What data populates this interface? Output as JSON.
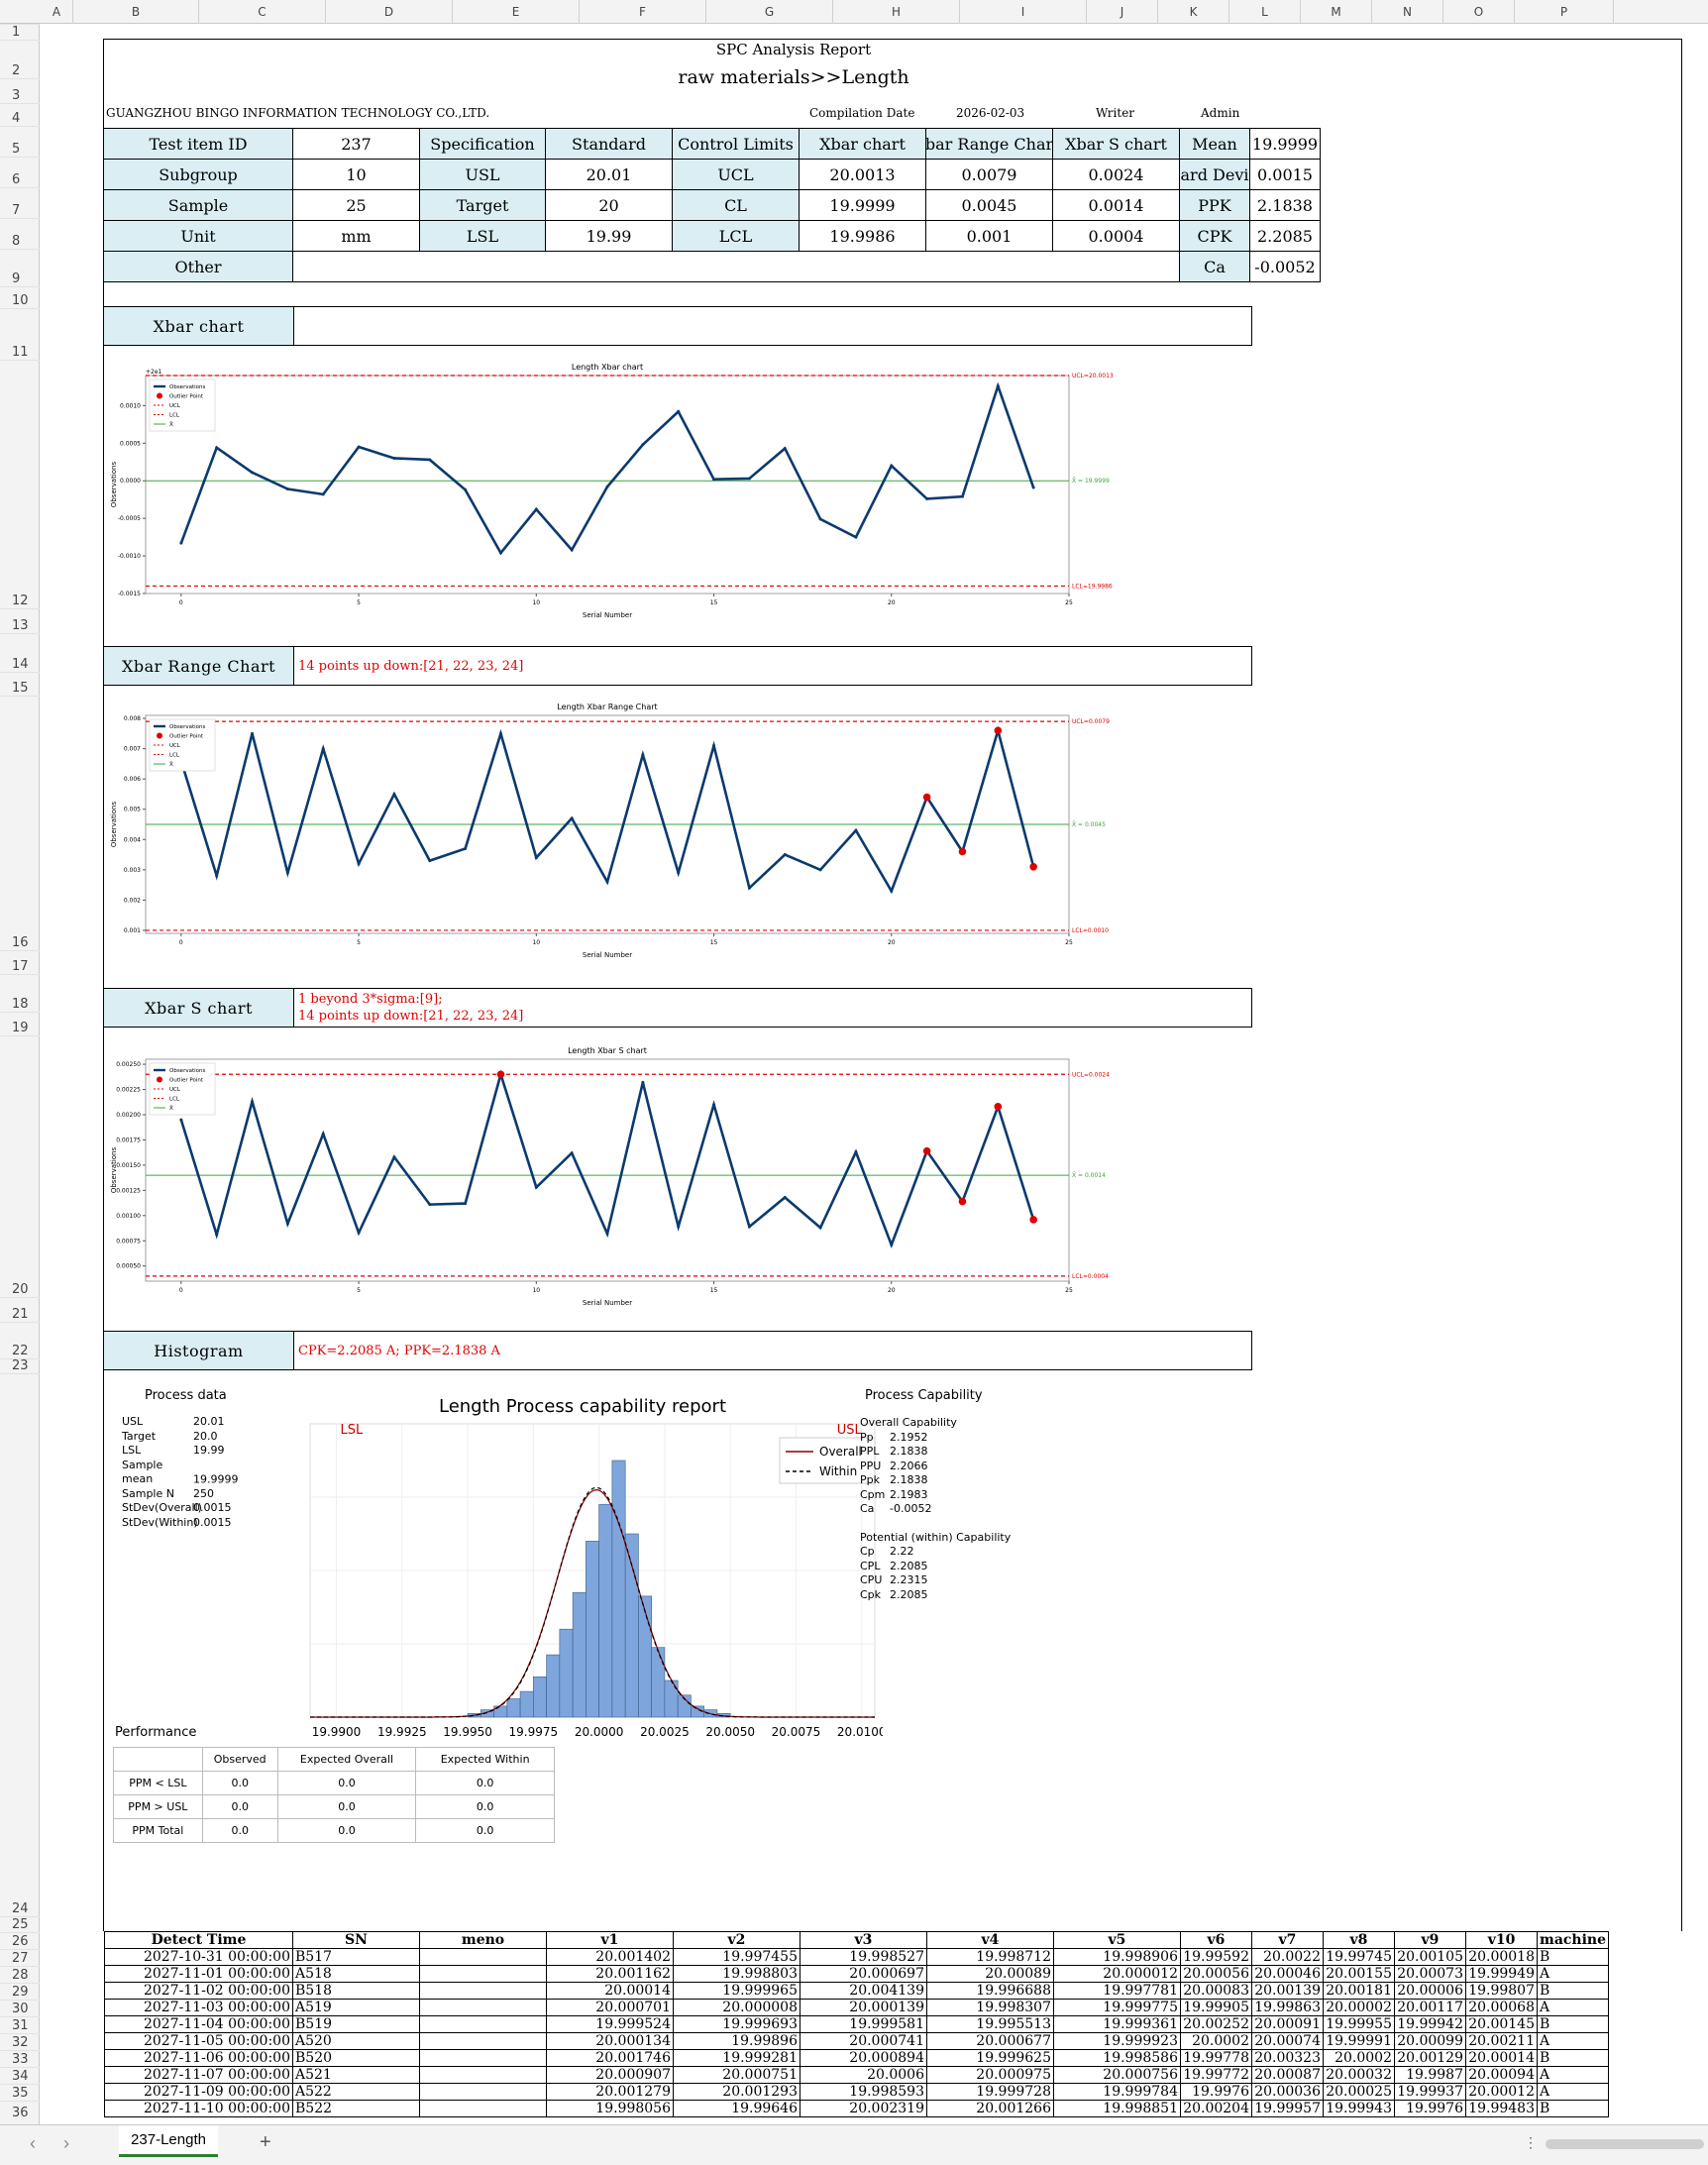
{
  "columns": [
    "A",
    "B",
    "C",
    "D",
    "E",
    "F",
    "G",
    "H",
    "I",
    "J",
    "K",
    "L",
    "M",
    "N",
    "O",
    "P"
  ],
  "rows": [
    "1",
    "2",
    "3",
    "4",
    "5",
    "6",
    "7",
    "8",
    "9",
    "10",
    "11",
    "12",
    "13",
    "14",
    "15",
    "16",
    "17",
    "18",
    "19",
    "20",
    "21",
    "22",
    "23",
    "24",
    "25",
    "26",
    "27",
    "28",
    "29",
    "30",
    "31",
    "32",
    "33",
    "34",
    "35",
    "36"
  ],
  "report": {
    "title": "SPC Analysis Report",
    "subtitle": "raw materials>>Length",
    "company": "GUANGZHOU BINGO INFORMATION TECHNOLOGY CO.,LTD.",
    "compilation_label": "Compilation Date",
    "compilation_date": "2026-02-03",
    "writer_label": "Writer",
    "writer": "Admin"
  },
  "summary": {
    "r1": [
      "Test item ID",
      "237",
      "Specification",
      "Standard",
      "Control Limits",
      "Xbar chart",
      "bar Range Char",
      "Xbar S chart",
      "Mean",
      "19.9999"
    ],
    "r2": [
      "Subgroup",
      "10",
      "USL",
      "20.01",
      "UCL",
      "20.0013",
      "0.0079",
      "0.0024",
      "ard Devi",
      "0.0015"
    ],
    "r3": [
      "Sample",
      "25",
      "Target",
      "20",
      "CL",
      "19.9999",
      "0.0045",
      "0.0014",
      "PPK",
      "2.1838"
    ],
    "r4": [
      "Unit",
      "mm",
      "LSL",
      "19.99",
      "LCL",
      "19.9986",
      "0.001",
      "0.0004",
      "CPK",
      "2.2085"
    ],
    "r5": [
      "Other",
      "",
      "Ca",
      "-0.0052"
    ]
  },
  "sections": {
    "xbar": {
      "label": "Xbar chart",
      "notes": []
    },
    "range": {
      "label": "Xbar Range Chart",
      "notes": [
        "14 points up down:[21, 22, 23, 24]"
      ]
    },
    "s": {
      "label": "Xbar S chart",
      "notes": [
        "1 beyond 3*sigma:[9];",
        "14 points up down:[21, 22, 23, 24]"
      ]
    },
    "hist": {
      "label": "Histogram",
      "notes": [
        "CPK=2.2085 A;  PPK=2.1838 A"
      ]
    }
  },
  "chart_data": [
    {
      "type": "line",
      "title": "Length Xbar chart",
      "xlabel": "Serial Number",
      "ylabel": "Observations",
      "offset_label": "+2e1",
      "x": [
        0,
        1,
        2,
        3,
        4,
        5,
        6,
        7,
        8,
        9,
        10,
        11,
        12,
        13,
        14,
        15,
        16,
        17,
        18,
        19,
        20,
        21,
        22,
        23,
        24
      ],
      "values": [
        -0.00083,
        0.00044,
        0.00011,
        -0.00011,
        -0.00018,
        0.00045,
        0.0003,
        0.00028,
        -0.00012,
        -0.00096,
        -0.00038,
        -0.00092,
        -8e-05,
        0.00048,
        0.00092,
        2e-05,
        3e-05,
        0.00043,
        -0.00051,
        -0.00075,
        0.0002,
        -0.00024,
        -0.00021,
        0.00126,
        -9e-05
      ],
      "ucl": 0.0014,
      "cl": 0,
      "lcl": -0.0014,
      "ylim": [
        -0.0015,
        0.0014
      ],
      "xlim": [
        -1,
        25
      ],
      "yticks": [
        -0.0015,
        -0.001,
        -0.0005,
        0,
        0.0005,
        0.001
      ],
      "yticklabels": [
        "-0.0015",
        "-0.0010",
        "-0.0005",
        "0.0000",
        "0.0005",
        "0.0010"
      ],
      "xticks": [
        0,
        5,
        10,
        15,
        20,
        25
      ],
      "ucl_label": "UCL=20.0013",
      "cl_label": "X̄ = 19.9999",
      "lcl_label": "LCL=19.9986",
      "outliers": [],
      "legend": [
        "Observations",
        "Outlier Point",
        "UCL",
        "LCL",
        "X̄"
      ]
    },
    {
      "type": "line",
      "title": "Length Xbar Range Chart",
      "xlabel": "Serial Number",
      "ylabel": "Observations",
      "x": [
        0,
        1,
        2,
        3,
        4,
        5,
        6,
        7,
        8,
        9,
        10,
        11,
        12,
        13,
        14,
        15,
        16,
        17,
        18,
        19,
        20,
        21,
        22,
        23,
        24
      ],
      "values": [
        0.0066,
        0.0028,
        0.0075,
        0.0029,
        0.007,
        0.0032,
        0.0055,
        0.0033,
        0.0037,
        0.0075,
        0.0034,
        0.0047,
        0.0026,
        0.0068,
        0.0029,
        0.0071,
        0.0024,
        0.0035,
        0.003,
        0.0043,
        0.0023,
        0.0054,
        0.0036,
        0.0076,
        0.0031
      ],
      "ucl": 0.0079,
      "cl": 0.0045,
      "lcl": 0.001,
      "ylim": [
        0.0009,
        0.0081
      ],
      "xlim": [
        -1,
        25
      ],
      "yticks": [
        0.001,
        0.002,
        0.003,
        0.004,
        0.005,
        0.006,
        0.007,
        0.008
      ],
      "yticklabels": [
        "0.001",
        "0.002",
        "0.003",
        "0.004",
        "0.005",
        "0.006",
        "0.007",
        "0.008"
      ],
      "xticks": [
        0,
        5,
        10,
        15,
        20,
        25
      ],
      "ucl_label": "UCL=0.0079",
      "cl_label": "X̄ = 0.0045",
      "lcl_label": "LCL=0.0010",
      "outliers": [
        21,
        22,
        23,
        24
      ],
      "legend": [
        "Observations",
        "Outlier Point",
        "UCL",
        "LCL",
        "X̄"
      ]
    },
    {
      "type": "line",
      "title": "Length Xbar S chart",
      "xlabel": "Serial Number",
      "ylabel": "Observations",
      "x": [
        0,
        1,
        2,
        3,
        4,
        5,
        6,
        7,
        8,
        9,
        10,
        11,
        12,
        13,
        14,
        15,
        16,
        17,
        18,
        19,
        20,
        21,
        22,
        23,
        24
      ],
      "values": [
        0.00195,
        0.00081,
        0.00213,
        0.00092,
        0.00181,
        0.00083,
        0.00158,
        0.00111,
        0.00112,
        0.0024,
        0.00128,
        0.00162,
        0.00082,
        0.00232,
        0.00089,
        0.0021,
        0.00089,
        0.00118,
        0.00088,
        0.00163,
        0.00071,
        0.00164,
        0.00114,
        0.00208,
        0.00096
      ],
      "ucl": 0.0024,
      "cl": 0.0014,
      "lcl": 0.0004,
      "ylim": [
        0.00035,
        0.00255
      ],
      "xlim": [
        -1,
        25
      ],
      "yticks": [
        0.0005,
        0.00075,
        0.001,
        0.00125,
        0.0015,
        0.00175,
        0.002,
        0.00225,
        0.0025
      ],
      "yticklabels": [
        "0.00050",
        "0.00075",
        "0.00100",
        "0.00125",
        "0.00150",
        "0.00175",
        "0.00200",
        "0.00225",
        "0.00250"
      ],
      "xticks": [
        0,
        5,
        10,
        15,
        20,
        25
      ],
      "ucl_label": "UCL=0.0024",
      "cl_label": "X̄ = 0.0014",
      "lcl_label": "LCL=0.0004",
      "outliers": [
        9,
        21,
        22,
        23,
        24
      ],
      "legend": [
        "Observations",
        "Outlier Point",
        "UCL",
        "LCL",
        "X̄"
      ]
    },
    {
      "type": "bar",
      "title": "Length Process capability report",
      "bin_edges_start": 19.995,
      "bin_width": 0.0005,
      "counts": [
        1,
        2,
        3,
        5,
        7,
        11,
        17,
        24,
        34,
        48,
        58,
        70,
        50,
        33,
        19,
        10,
        6,
        3,
        2,
        1
      ],
      "xlim": [
        19.989,
        20.0105
      ],
      "xticks": [
        19.99,
        19.9925,
        19.995,
        19.9975,
        20.0,
        20.0025,
        20.005,
        20.0075,
        20.01
      ],
      "xticklabels": [
        "19.9900",
        "19.9925",
        "19.9950",
        "19.9975",
        "20.0000",
        "20.0025",
        "20.0050",
        "20.0075",
        "20.0100"
      ],
      "lsl": 19.99,
      "usl": 20.01,
      "lsl_label": "LSL",
      "usl_label": "USL",
      "legend": [
        "Overall",
        "Within"
      ]
    }
  ],
  "process_data": {
    "title": "Process data",
    "rows": [
      [
        "USL",
        "20.01"
      ],
      [
        "Target",
        "20.0"
      ],
      [
        "LSL",
        "19.99"
      ],
      [
        "Sample mean",
        "19.9999"
      ],
      [
        "Sample N",
        "250"
      ],
      [
        "StDev(Overall)",
        "0.0015"
      ],
      [
        "StDev(Within)",
        "0.0015"
      ]
    ]
  },
  "capability": {
    "title": "Process Capability",
    "overall_title": "Overall Capability",
    "overall": [
      [
        "Pp",
        "2.1952"
      ],
      [
        "PPL",
        "2.1838"
      ],
      [
        "PPU",
        "2.2066"
      ],
      [
        "Ppk",
        "2.1838"
      ],
      [
        "Cpm",
        "2.1983"
      ],
      [
        "Ca",
        "-0.0052"
      ]
    ],
    "within_title": "Potential (within) Capability",
    "within": [
      [
        "Cp",
        "2.22"
      ],
      [
        "CPL",
        "2.2085"
      ],
      [
        "CPU",
        "2.2315"
      ],
      [
        "Cpk",
        "2.2085"
      ]
    ]
  },
  "performance": {
    "title": "Performance",
    "headers": [
      "",
      "Observed",
      "Expected Overall",
      "Expected Within"
    ],
    "rows": [
      [
        "PPM < LSL",
        "0.0",
        "0.0",
        "0.0"
      ],
      [
        "PPM > USL",
        "0.0",
        "0.0",
        "0.0"
      ],
      [
        "PPM Total",
        "0.0",
        "0.0",
        "0.0"
      ]
    ]
  },
  "data_table": {
    "headers": [
      "Detect Time",
      "SN",
      "meno",
      "v1",
      "v2",
      "v3",
      "v4",
      "v5",
      "v6",
      "v7",
      "v8",
      "v9",
      "v10",
      "machine"
    ],
    "rows": [
      [
        "2027-10-31 00:00:00",
        "B517",
        "",
        "20.001402",
        "19.997455",
        "19.998527",
        "19.998712",
        "19.998906",
        "19.99592",
        "20.0022",
        "19.99745",
        "20.00105",
        "20.00018",
        "B"
      ],
      [
        "2027-11-01 00:00:00",
        "A518",
        "",
        "20.001162",
        "19.998803",
        "20.000697",
        "20.00089",
        "20.000012",
        "20.00056",
        "20.00046",
        "20.00155",
        "20.00073",
        "19.99949",
        "A"
      ],
      [
        "2027-11-02 00:00:00",
        "B518",
        "",
        "20.00014",
        "19.999965",
        "20.004139",
        "19.996688",
        "19.997781",
        "20.00083",
        "20.00139",
        "20.00181",
        "20.00006",
        "19.99807",
        "B"
      ],
      [
        "2027-11-03 00:00:00",
        "A519",
        "",
        "20.000701",
        "20.000008",
        "20.000139",
        "19.998307",
        "19.999775",
        "19.99905",
        "19.99863",
        "20.00002",
        "20.00117",
        "20.00068",
        "A"
      ],
      [
        "2027-11-04 00:00:00",
        "B519",
        "",
        "19.999524",
        "19.999693",
        "19.999581",
        "19.995513",
        "19.999361",
        "20.00252",
        "20.00091",
        "19.99955",
        "19.99942",
        "20.00145",
        "B"
      ],
      [
        "2027-11-05 00:00:00",
        "A520",
        "",
        "20.000134",
        "19.99896",
        "20.000741",
        "20.000677",
        "19.999923",
        "20.0002",
        "20.00074",
        "19.99991",
        "20.00099",
        "20.00211",
        "A"
      ],
      [
        "2027-11-06 00:00:00",
        "B520",
        "",
        "20.001746",
        "19.999281",
        "20.000894",
        "19.999625",
        "19.998586",
        "19.99778",
        "20.00323",
        "20.0002",
        "20.00129",
        "20.00014",
        "B"
      ],
      [
        "2027-11-07 00:00:00",
        "A521",
        "",
        "20.000907",
        "20.000751",
        "20.0006",
        "20.000975",
        "20.000756",
        "19.99772",
        "20.00087",
        "20.00032",
        "19.9987",
        "20.00094",
        "A"
      ],
      [
        "2027-11-09 00:00:00",
        "A522",
        "",
        "20.001279",
        "20.001293",
        "19.998593",
        "19.999728",
        "19.999784",
        "19.9976",
        "20.00036",
        "20.00025",
        "19.99937",
        "20.00012",
        "A"
      ],
      [
        "2027-11-10 00:00:00",
        "B522",
        "",
        "19.998056",
        "19.99646",
        "20.002319",
        "20.001266",
        "19.998851",
        "20.00204",
        "19.99957",
        "19.99943",
        "19.9976",
        "19.99483",
        "B"
      ]
    ]
  },
  "tabs": {
    "active": "237-Length",
    "add": "+"
  },
  "colors": {
    "header_fill": "#daeef3",
    "series": "#0b3a6e",
    "limit": "#e00000",
    "center": "#3aa63a",
    "hist_bar": "#7ea6dc"
  }
}
